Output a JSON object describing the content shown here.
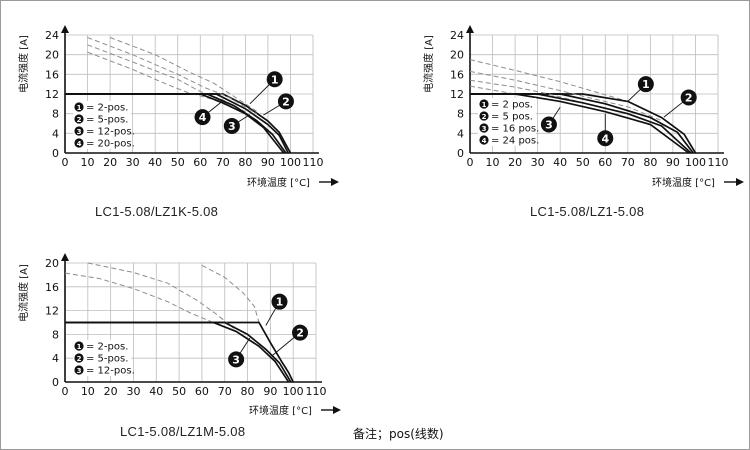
{
  "note": "备注；pos(线数)",
  "chart_data": [
    {
      "type": "line",
      "caption": "LC1-5.08/LZ1K-5.08",
      "xlabel": "环境温度 [°C]",
      "ylabel": "电流强度 [A]",
      "xlim": [
        0,
        110
      ],
      "ylim": [
        0,
        24
      ],
      "x_ticks": [
        0,
        10,
        20,
        30,
        40,
        50,
        60,
        70,
        80,
        90,
        100,
        110
      ],
      "y_ticks": [
        0,
        4,
        8,
        12,
        16,
        20,
        24
      ],
      "grid": true,
      "legend": [
        "= 2-pos.",
        "= 5-pos.",
        "= 12-pos.",
        "= 20-pos."
      ],
      "series": [
        {
          "marker": "1",
          "solid": [
            [
              0,
              12
            ],
            [
              70,
              12
            ],
            [
              80,
              9.7
            ],
            [
              90,
              6.5
            ],
            [
              95,
              4.2
            ],
            [
              100,
              0
            ]
          ],
          "dashed": [
            [
              20,
              23.5
            ],
            [
              40,
              20
            ],
            [
              55,
              16.5
            ],
            [
              66,
              14.2
            ],
            [
              75,
              11.5
            ],
            [
              85,
              8.5
            ]
          ]
        },
        {
          "marker": "2",
          "solid": [
            [
              0,
              12
            ],
            [
              67,
              12
            ],
            [
              80,
              9
            ],
            [
              90,
              5.8
            ],
            [
              95,
              3.6
            ],
            [
              99,
              0
            ]
          ],
          "dashed": [
            [
              10,
              23.5
            ],
            [
              30,
              20
            ],
            [
              50,
              16
            ],
            [
              62,
              13.3
            ],
            [
              72,
              11.5
            ],
            [
              85,
              8
            ]
          ]
        },
        {
          "marker": "3",
          "solid": [
            [
              0,
              12
            ],
            [
              63,
              12
            ],
            [
              75,
              9.6
            ],
            [
              85,
              6.6
            ],
            [
              92,
              3.8
            ],
            [
              98,
              0
            ]
          ],
          "dashed": [
            [
              10,
              22
            ],
            [
              30,
              18.5
            ],
            [
              50,
              15
            ],
            [
              60,
              12.5
            ],
            [
              70,
              10.8
            ],
            [
              80,
              8.4
            ]
          ]
        },
        {
          "marker": "4",
          "solid": [
            [
              0,
              12
            ],
            [
              60,
              12
            ],
            [
              70,
              10.2
            ],
            [
              80,
              8
            ],
            [
              88,
              5.2
            ],
            [
              97,
              0
            ]
          ],
          "dashed": [
            [
              10,
              20.5
            ],
            [
              30,
              17
            ],
            [
              45,
              14
            ],
            [
              55,
              12.2
            ],
            [
              65,
              11
            ],
            [
              75,
              9.1
            ]
          ]
        }
      ],
      "callouts": [
        {
          "label": "1",
          "pos": [
            93,
            15
          ],
          "to": [
            82,
            10
          ]
        },
        {
          "label": "2",
          "pos": [
            98,
            10.5
          ],
          "to": [
            88,
            7.7
          ]
        },
        {
          "label": "3",
          "pos": [
            74,
            5.5
          ],
          "to": [
            82,
            7.8
          ]
        },
        {
          "label": "4",
          "pos": [
            61,
            7.3
          ],
          "to": [
            70,
            10.6
          ]
        }
      ]
    },
    {
      "type": "line",
      "caption": "LC1-5.08/LZ1-5.08",
      "xlabel": "环境温度 [°C]",
      "ylabel": "电流强度 [A]",
      "xlim": [
        0,
        110
      ],
      "ylim": [
        0,
        24
      ],
      "x_ticks": [
        0,
        10,
        20,
        30,
        40,
        50,
        60,
        70,
        80,
        90,
        100,
        110
      ],
      "y_ticks": [
        0,
        4,
        8,
        12,
        16,
        20,
        24
      ],
      "grid": true,
      "legend": [
        "= 2 pos.",
        "= 5 pos.",
        "= 16 pos.",
        "= 24 pos."
      ],
      "series": [
        {
          "marker": "1",
          "solid": [
            [
              0,
              12
            ],
            [
              50,
              12
            ],
            [
              70,
              10.5
            ],
            [
              85,
              7.2
            ],
            [
              95,
              3.8
            ],
            [
              100,
              0
            ]
          ],
          "dashed": [
            [
              0,
              19
            ],
            [
              20,
              16.8
            ],
            [
              40,
              14.5
            ],
            [
              55,
              12.5
            ],
            [
              70,
              10.5
            ],
            [
              85,
              7.2
            ]
          ]
        },
        {
          "marker": "2",
          "solid": [
            [
              0,
              12
            ],
            [
              40,
              12
            ],
            [
              60,
              10
            ],
            [
              80,
              7.2
            ],
            [
              92,
              4.2
            ],
            [
              99,
              0
            ]
          ],
          "dashed": [
            [
              0,
              16.6
            ],
            [
              20,
              14.8
            ],
            [
              40,
              12.7
            ],
            [
              55,
              11
            ],
            [
              70,
              9.4
            ],
            [
              85,
              6.6
            ]
          ]
        },
        {
          "marker": "3",
          "solid": [
            [
              0,
              12
            ],
            [
              30,
              12
            ],
            [
              50,
              10.2
            ],
            [
              70,
              8
            ],
            [
              85,
              5.5
            ],
            [
              98,
              0
            ]
          ],
          "dashed": [
            [
              0,
              14.8
            ],
            [
              20,
              13.4
            ],
            [
              35,
              12
            ],
            [
              50,
              10.2
            ],
            [
              70,
              8
            ],
            [
              85,
              5.5
            ]
          ]
        },
        {
          "marker": "4",
          "solid": [
            [
              0,
              12
            ],
            [
              20,
              12
            ],
            [
              40,
              10.5
            ],
            [
              60,
              8.4
            ],
            [
              80,
              5.8
            ],
            [
              97,
              0
            ]
          ],
          "dashed": [
            [
              0,
              13.6
            ],
            [
              10,
              12.8
            ],
            [
              20,
              12
            ],
            [
              40,
              10.5
            ],
            [
              60,
              8.4
            ],
            [
              80,
              5.8
            ]
          ]
        }
      ],
      "callouts": [
        {
          "label": "1",
          "pos": [
            78,
            14
          ],
          "to": [
            70,
            10.5
          ]
        },
        {
          "label": "2",
          "pos": [
            97,
            11.3
          ],
          "to": [
            86,
            7.3
          ]
        },
        {
          "label": "3",
          "pos": [
            35,
            5.8
          ],
          "to": [
            40,
            9.3
          ]
        },
        {
          "label": "4",
          "pos": [
            60,
            3
          ],
          "to": [
            60,
            8
          ]
        }
      ]
    },
    {
      "type": "line",
      "caption": "LC1-5.08/LZ1M-5.08",
      "xlabel": "环境温度 [°C]",
      "ylabel": "电流强度 [A]",
      "xlim": [
        0,
        110
      ],
      "ylim": [
        0,
        20
      ],
      "x_ticks": [
        0,
        10,
        20,
        30,
        40,
        50,
        60,
        70,
        80,
        90,
        100,
        110
      ],
      "y_ticks": [
        0,
        4,
        8,
        12,
        16,
        20
      ],
      "grid": true,
      "legend": [
        "= 2-pos.",
        "= 5-pos.",
        "= 12-pos."
      ],
      "series": [
        {
          "marker": "1",
          "solid": [
            [
              0,
              10
            ],
            [
              85,
              10
            ],
            [
              90,
              6.6
            ],
            [
              95,
              3.4
            ],
            [
              98,
              1.6
            ],
            [
              100,
              0
            ]
          ],
          "dashed": [
            [
              60,
              19.6
            ],
            [
              70,
              17.6
            ],
            [
              78,
              15
            ],
            [
              83,
              12.7
            ],
            [
              85,
              10
            ]
          ]
        },
        {
          "marker": "2",
          "solid": [
            [
              0,
              10
            ],
            [
              70,
              10
            ],
            [
              80,
              8
            ],
            [
              88,
              5.5
            ],
            [
              94,
              3.2
            ],
            [
              99,
              0
            ]
          ],
          "dashed": [
            [
              10,
              20
            ],
            [
              30,
              18.4
            ],
            [
              45,
              16.6
            ],
            [
              58,
              13.7
            ],
            [
              66,
              11.5
            ],
            [
              74,
              9
            ]
          ]
        },
        {
          "marker": "3",
          "solid": [
            [
              0,
              10
            ],
            [
              65,
              10
            ],
            [
              75,
              8.5
            ],
            [
              85,
              6
            ],
            [
              92,
              3.5
            ],
            [
              98,
              0
            ]
          ],
          "dashed": [
            [
              0,
              18.3
            ],
            [
              15,
              17.4
            ],
            [
              30,
              15.7
            ],
            [
              45,
              13.5
            ],
            [
              55,
              11.6
            ],
            [
              65,
              10
            ]
          ]
        }
      ],
      "callouts": [
        {
          "label": "1",
          "pos": [
            94,
            13.5
          ],
          "to": [
            88,
            9.5
          ]
        },
        {
          "label": "2",
          "pos": [
            103,
            8.3
          ],
          "to": [
            91,
            4.5
          ]
        },
        {
          "label": "3",
          "pos": [
            75,
            3.8
          ],
          "to": [
            81,
            7.4
          ]
        }
      ]
    }
  ]
}
